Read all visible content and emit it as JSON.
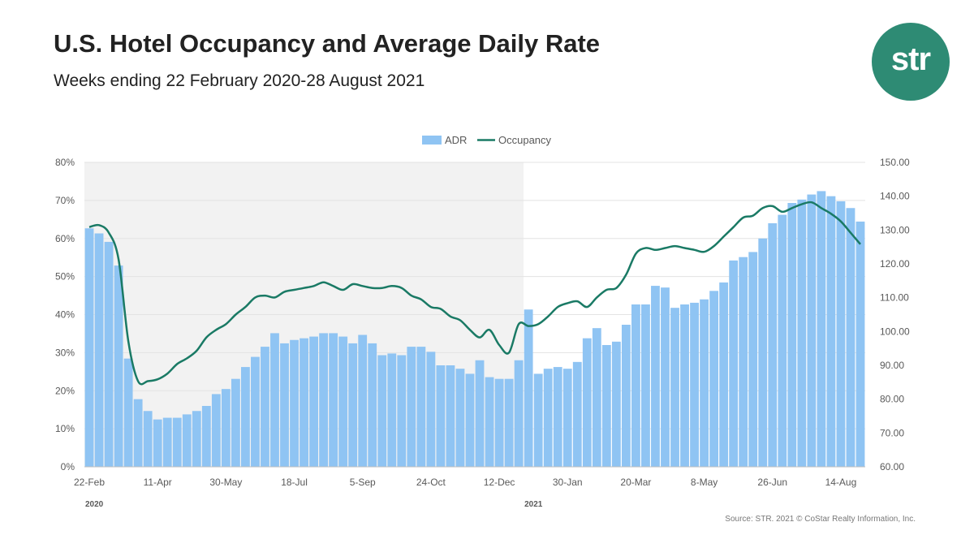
{
  "header": {
    "title": "U.S. Hotel Occupancy and Average Daily Rate",
    "subtitle": "Weeks ending 22 February 2020-28 August 2021"
  },
  "logo": {
    "text": "str",
    "color": "#2e8b74"
  },
  "footer": {
    "source": "Source: STR. 2021 © CoStar Realty Information, Inc."
  },
  "colors": {
    "bar": "#8fc4f3",
    "line": "#1a7a65",
    "shade": "#f2f2f2",
    "grid": "#e3e3e3",
    "axis_text": "#595959"
  },
  "chart_data": {
    "type": "bar+line",
    "legend": {
      "position": "top",
      "items": [
        "ADR",
        "Occupancy"
      ]
    },
    "x_tick_labels": [
      "22-Feb",
      "11-Apr",
      "30-May",
      "18-Jul",
      "5-Sep",
      "24-Oct",
      "12-Dec",
      "30-Jan",
      "20-Mar",
      "8-May",
      "26-Jun",
      "14-Aug"
    ],
    "x_tick_every_weeks": 7,
    "year_labels": [
      {
        "label": "2020",
        "week_index": 0
      },
      {
        "label": "2021",
        "week_index": 45
      }
    ],
    "shaded_weeks": [
      0,
      45
    ],
    "y_left": {
      "label": "",
      "min": 0,
      "max": 80,
      "ticks": [
        "0%",
        "10%",
        "20%",
        "30%",
        "40%",
        "50%",
        "60%",
        "70%",
        "80%"
      ]
    },
    "y_right": {
      "label": "",
      "min": 60,
      "max": 150,
      "ticks": [
        "60.00",
        "70.00",
        "80.00",
        "90.00",
        "100.00",
        "110.00",
        "120.00",
        "130.00",
        "140.00",
        "150.00"
      ]
    },
    "series": [
      {
        "name": "ADR",
        "type": "bar",
        "axis": "right",
        "values": [
          130.5,
          129.0,
          126.5,
          119.5,
          92.0,
          80.0,
          76.5,
          74.0,
          74.5,
          74.5,
          75.5,
          76.5,
          78.0,
          81.5,
          83.0,
          86.0,
          89.5,
          92.5,
          95.5,
          99.5,
          96.5,
          97.5,
          98.0,
          98.5,
          99.5,
          99.5,
          98.5,
          96.5,
          99.0,
          96.5,
          93.0,
          93.5,
          93.0,
          95.5,
          95.5,
          94.0,
          90.0,
          90.0,
          89.0,
          87.5,
          91.5,
          86.5,
          86.0,
          86.0,
          91.5,
          106.5,
          87.5,
          89.0,
          89.5,
          89.0,
          91.0,
          98.0,
          101.0,
          96.0,
          97.0,
          102.0,
          108.0,
          108.0,
          113.5,
          113.0,
          107.0,
          108.0,
          108.5,
          109.5,
          112.0,
          114.5,
          121.0,
          122.0,
          123.5,
          127.5,
          132.0,
          134.5,
          138.0,
          139.0,
          140.5,
          141.5,
          140.0,
          138.5,
          136.5,
          132.5
        ]
      },
      {
        "name": "Occupancy",
        "type": "line",
        "axis": "left",
        "values": [
          63.0,
          63.5,
          61.5,
          54.5,
          33.0,
          22.5,
          22.5,
          23.0,
          24.5,
          27.0,
          28.5,
          30.5,
          34.0,
          36.0,
          37.5,
          40.0,
          42.0,
          44.5,
          45.0,
          44.5,
          46.0,
          46.5,
          47.0,
          47.5,
          48.5,
          47.5,
          46.5,
          48.0,
          47.5,
          47.0,
          47.0,
          47.5,
          47.0,
          45.0,
          44.0,
          42.0,
          41.5,
          39.5,
          38.5,
          36.0,
          34.0,
          36.0,
          32.0,
          30.0,
          37.5,
          37.0,
          37.5,
          39.5,
          42.0,
          43.0,
          43.5,
          42.0,
          44.5,
          46.5,
          47.0,
          50.5,
          56.0,
          57.5,
          57.0,
          57.5,
          58.0,
          57.5,
          57.0,
          56.5,
          58.0,
          60.5,
          63.0,
          65.5,
          66.0,
          68.0,
          68.5,
          67.0,
          68.0,
          69.0,
          69.5,
          68.0,
          66.5,
          64.5,
          61.5,
          58.5
        ]
      }
    ]
  }
}
